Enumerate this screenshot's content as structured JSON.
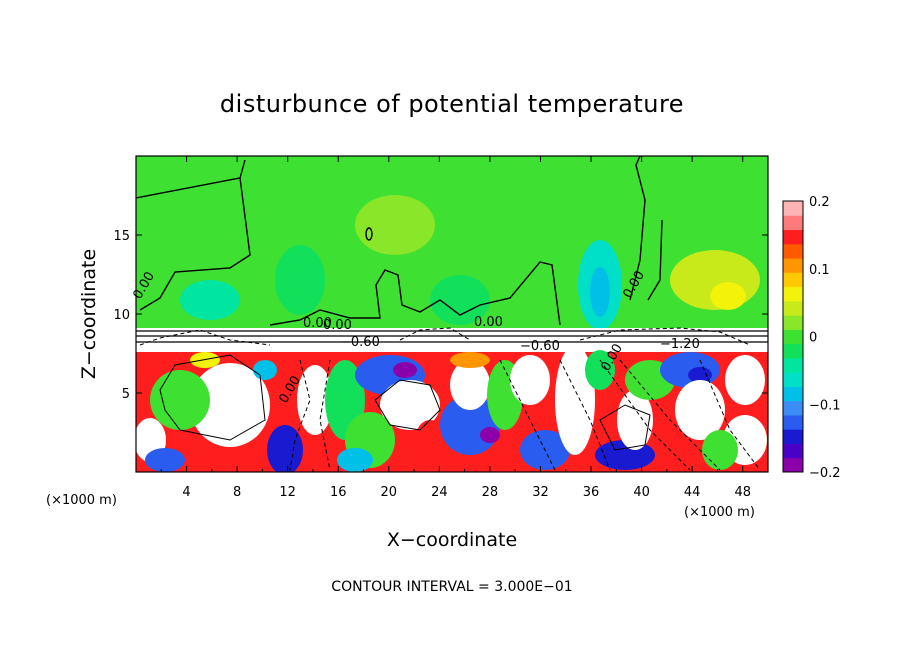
{
  "chart_data": {
    "type": "heatmap",
    "title": "disturbunce of potential temperature",
    "xlabel": "X−coordinate",
    "ylabel": "Z−coordinate",
    "x_unit": "(×1000 m)",
    "x_unit_right": "(×1000 m)",
    "xlim": [
      0,
      50
    ],
    "ylim": [
      0,
      20
    ],
    "x_ticks": [
      4,
      8,
      12,
      16,
      20,
      24,
      28,
      32,
      36,
      40,
      44,
      48
    ],
    "x_tick_labels": [
      "4",
      "8",
      "12",
      "16",
      "20",
      "24",
      "28",
      "32",
      "36",
      "40",
      "44",
      "48"
    ],
    "y_ticks": [
      5,
      10,
      15
    ],
    "y_tick_labels": [
      "5",
      "10",
      "15"
    ],
    "colorbar": {
      "min": -0.2,
      "max": 0.2,
      "ticks": [
        0.2,
        0.1,
        0,
        -0.1,
        -0.2
      ],
      "tick_labels": [
        "0.2",
        "0.1",
        "0",
        "−0.1",
        "−0.2"
      ],
      "colors": [
        "#8a00aa",
        "#4b00c8",
        "#1a1ad0",
        "#2a5cf0",
        "#3c8cf5",
        "#00c0e8",
        "#00e0c8",
        "#00e6a0",
        "#12e05a",
        "#3ee032",
        "#8ae628",
        "#c8ea1a",
        "#f2f20a",
        "#ffc800",
        "#ff9600",
        "#ff5a00",
        "#ff1e1e",
        "#ff7a7a",
        "#ffb4b4"
      ]
    },
    "contour_labels": [
      "0.00",
      "0.00",
      "0.00",
      "0.00",
      "0.00",
      "−0.60",
      "−0.60",
      "−1.20",
      "0.00",
      "0.00"
    ],
    "contour_interval_text": "CONTOUR INTERVAL = 3.000E−01",
    "grid": false
  }
}
